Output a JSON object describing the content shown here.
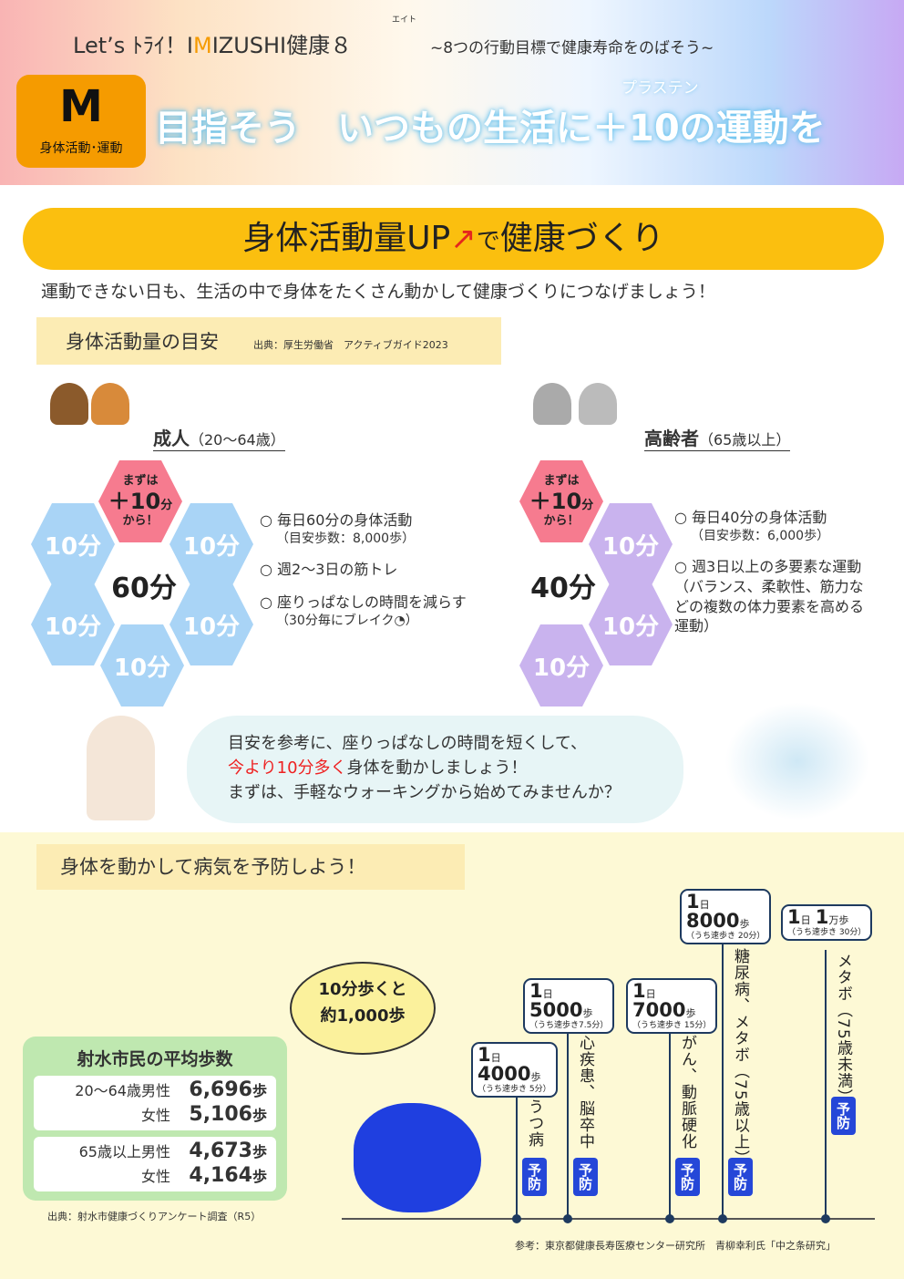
{
  "header": {
    "title_pre": "Let’s ﾄﾗｲ！I",
    "title_m": "M",
    "title_post": "IZUSHI健康８",
    "ruby_eight": "エイト",
    "subtitle": "~8つの行動目標で健康寿命をのばそう~",
    "badge_letter": "M",
    "badge_label": "身体活動･運動",
    "slogan": "目指そう　いつもの生活に＋10の運動を",
    "slogan_ruby": "プラステン"
  },
  "banner": {
    "text_pre": "身体活動量UP",
    "arrow": "↗",
    "text_mid": "で",
    "text_post": "健康づくり"
  },
  "intro": "運動できない日も、生活の中で身体をたくさん動かして健康づくりにつなげましょう！",
  "guide": {
    "title": "身体活動量の目安",
    "source": "出典：厚生労働省　アクティブガイド2023",
    "adult": {
      "title": "成人",
      "range": "（20～64歳）",
      "start_top": "まずは",
      "start_val": "＋10",
      "start_unit": "分",
      "start_bottom": "から！",
      "hex": "10分",
      "total": "60分",
      "items": [
        {
          "text": "○ 毎日60分の身体活動",
          "note": "（目安歩数：8,000歩）"
        },
        {
          "text": "○ 週2～3日の筋トレ"
        },
        {
          "text": "○ 座りっぱなしの時間を減らす",
          "note": "（30分毎にブレイク◔）"
        }
      ]
    },
    "senior": {
      "title": "高齢者",
      "range": "（65歳以上）",
      "start_top": "まずは",
      "start_val": "＋10",
      "start_unit": "分",
      "start_bottom": "から！",
      "hex": "10分",
      "total": "40分",
      "items": [
        {
          "text": "○ 毎日40分の身体活動",
          "note": "（目安歩数：6,000歩）"
        },
        {
          "text": "○ 週3日以上の多要素な運動（バランス、柔軟性、筋力などの複数の体力要素を高める運動）"
        }
      ]
    }
  },
  "advice": {
    "line1": "目安を参考に、座りっぱなしの時間を短くして、",
    "line2_red": "今より10分多く",
    "line2": "身体を動かしましょう！",
    "line3": "まずは、手軽なウォーキングから始めてみませんか？"
  },
  "prevent": {
    "title": "身体を動かして病気を予防しよう！",
    "speech": {
      "line1": "10分歩くと",
      "line2": "約1,000歩"
    },
    "average": {
      "title": "射水市民の平均歩数",
      "rows": [
        {
          "label": "20～64歳男性",
          "value": "6,696",
          "unit": "歩"
        },
        {
          "label": "女性",
          "value": "5,106",
          "unit": "歩"
        },
        {
          "label": "65歳以上男性",
          "value": "4,673",
          "unit": "歩"
        },
        {
          "label": "女性",
          "value": "4,164",
          "unit": "歩"
        }
      ],
      "source": "出典：射水市健康づくりアンケート調査（R5）"
    },
    "steps": [
      {
        "day": "1",
        "day_unit": "日",
        "steps": "4000",
        "unit": "歩",
        "note": "（うち速歩き 5分）",
        "disease": "うつ病",
        "label": "予防"
      },
      {
        "day": "1",
        "day_unit": "日",
        "steps": "5000",
        "unit": "歩",
        "note": "（うち速歩き7.5分）",
        "disease": "心疾患、脳卒中",
        "label": "予防"
      },
      {
        "day": "1",
        "day_unit": "日",
        "steps": "7000",
        "unit": "歩",
        "note": "（うち速歩き 15分）",
        "disease": "がん、動脈硬化",
        "label": "予防"
      },
      {
        "day": "1",
        "day_unit": "日",
        "steps": "8000",
        "unit": "歩",
        "note": "（うち速歩き 20分）",
        "disease": "糖尿病、メタボ（75歳以上）",
        "label": "予防"
      },
      {
        "day": "1",
        "day_unit": "日",
        "steps": "1",
        "unit": "万歩",
        "note": "（うち速歩き 30分）",
        "disease": "メタボ（75歳未満）",
        "label": "予防"
      }
    ],
    "reference": "参考：東京都健康長寿医療センター研究所　青柳幸利氏「中之条研究」"
  },
  "colors": {
    "accent": "#f59b00",
    "banner": "#fbbf0f",
    "hex_blue": "#a9d4f6",
    "hex_lavender": "#c9b3ee",
    "hex_pink": "#f67b8f",
    "prevent_blue": "#2547d8"
  }
}
